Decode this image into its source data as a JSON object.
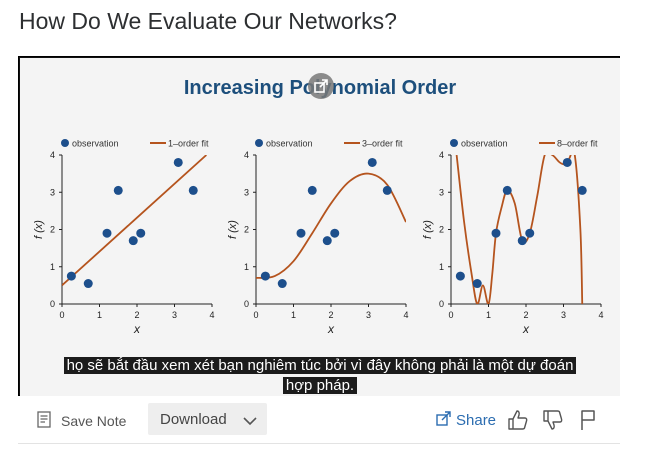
{
  "page": {
    "title": "How Do We Evaluate Our Networks?"
  },
  "slide": {
    "title": "Increasing Polynomial Order",
    "plots": [
      {
        "legend_obs": "observation",
        "legend_fit": "1–order fit"
      },
      {
        "legend_obs": "observation",
        "legend_fit": "3–order fit"
      },
      {
        "legend_obs": "observation",
        "legend_fit": "8–order fit"
      }
    ],
    "xlabel": "x",
    "ylabel": "f (x)",
    "xticks": [
      "0",
      "1",
      "2",
      "3",
      "4"
    ],
    "yticks": [
      "0",
      "1",
      "2",
      "3",
      "4"
    ],
    "colors": {
      "observation": "#1d4f8c",
      "fit": "#b5541e",
      "title": "#1d4f7c"
    }
  },
  "chart_data": [
    {
      "type": "scatter",
      "title": "",
      "xlabel": "x",
      "ylabel": "f(x)",
      "xlim": [
        0,
        4
      ],
      "ylim": [
        0,
        4
      ],
      "series": [
        {
          "name": "observation",
          "x": [
            0.25,
            0.7,
            1.2,
            1.5,
            1.9,
            2.1,
            3.1,
            3.5
          ],
          "y": [
            0.75,
            0.55,
            1.9,
            3.05,
            1.7,
            1.9,
            3.8,
            3.05
          ]
        },
        {
          "name": "1–order fit",
          "x": [
            0,
            3.85
          ],
          "y": [
            0.5,
            4.0
          ]
        }
      ]
    },
    {
      "type": "scatter",
      "title": "",
      "xlabel": "x",
      "ylabel": "f(x)",
      "xlim": [
        0,
        4
      ],
      "ylim": [
        0,
        4
      ],
      "series": [
        {
          "name": "observation",
          "x": [
            0.25,
            0.7,
            1.2,
            1.5,
            1.9,
            2.1,
            3.1,
            3.5
          ],
          "y": [
            0.75,
            0.55,
            1.9,
            3.05,
            1.7,
            1.9,
            3.8,
            3.05
          ]
        },
        {
          "name": "3–order fit",
          "x": [
            0,
            0.5,
            1,
            1.5,
            2,
            2.5,
            3,
            3.5,
            4
          ],
          "y": [
            0.7,
            0.75,
            1.15,
            1.9,
            2.7,
            3.3,
            3.5,
            3.2,
            2.2
          ]
        }
      ]
    },
    {
      "type": "scatter",
      "title": "",
      "xlabel": "x",
      "ylabel": "f(x)",
      "xlim": [
        0,
        4
      ],
      "ylim": [
        0,
        4
      ],
      "series": [
        {
          "name": "observation",
          "x": [
            0.25,
            0.7,
            1.2,
            1.5,
            1.9,
            2.1,
            3.1,
            3.5
          ],
          "y": [
            0.75,
            0.55,
            1.9,
            3.05,
            1.7,
            1.9,
            3.8,
            3.05
          ]
        },
        {
          "name": "8–order fit",
          "x": [
            0.15,
            0.35,
            0.55,
            0.7,
            0.85,
            1.0,
            1.1,
            1.2,
            1.35,
            1.5,
            1.7,
            1.9,
            2.1,
            2.3,
            2.5,
            2.7,
            2.9,
            3.05,
            3.15,
            3.3,
            3.45,
            3.5
          ],
          "y": [
            4.0,
            2.2,
            0.8,
            0.0,
            0.5,
            0.0,
            0.8,
            1.9,
            2.6,
            3.05,
            2.7,
            1.7,
            1.9,
            2.9,
            4.0,
            4.0,
            3.8,
            3.75,
            3.9,
            4.0,
            2.0,
            0.0
          ]
        }
      ]
    }
  ],
  "caption": {
    "line1": "họ sẽ bắt đầu xem xét bạn nghiêm túc bởi vì đây không phải là một dự đoán",
    "line2": "hợp pháp."
  },
  "toolbar": {
    "save_note": "Save Note",
    "download": "Download",
    "share": "Share",
    "icons": {
      "save_note": "note-icon",
      "download": "chevron-down-icon",
      "share": "share-icon",
      "like": "thumbs-up-icon",
      "dislike": "thumbs-down-icon",
      "report": "flag-icon"
    }
  }
}
